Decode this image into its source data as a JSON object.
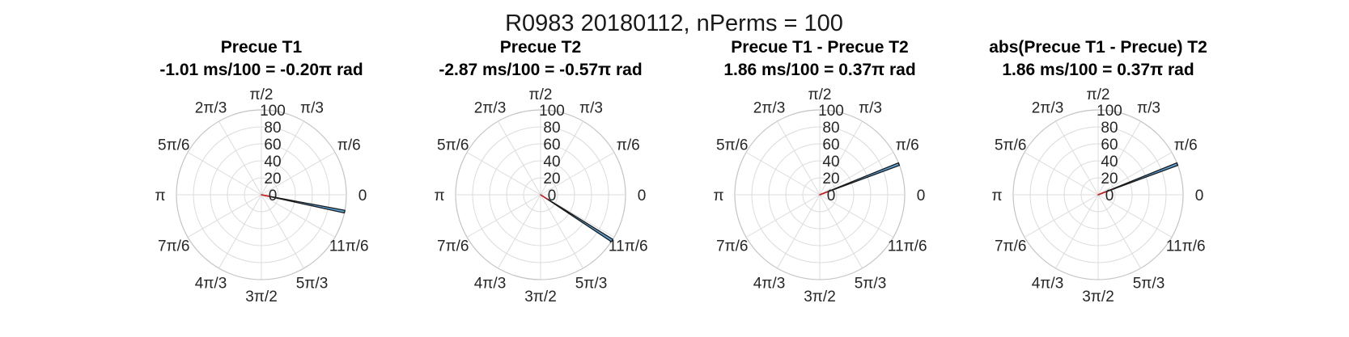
{
  "figure": {
    "title": "R0983 20180112, nPerms = 100",
    "angle_labels": [
      "0",
      "π/6",
      "π/3",
      "π/2",
      "2π/3",
      "5π/6",
      "π",
      "7π/6",
      "4π/3",
      "3π/2",
      "5π/3",
      "11π/6"
    ],
    "radial_ticks": [
      "0",
      "20",
      "40",
      "60",
      "80",
      "100"
    ]
  },
  "chart_data": [
    {
      "type": "polar-histogram",
      "title": "Precue T1",
      "subtitle": "-1.01 ms/100 = -0.20π rad",
      "rlim": [
        0,
        100
      ],
      "bins": [
        {
          "angle_start_rad": -0.216,
          "angle_end_rad": -0.184,
          "count": 100
        }
      ],
      "mean_angle_rad": -0.2,
      "mean_length": 10
    },
    {
      "type": "polar-histogram",
      "title": "Precue T2",
      "subtitle": "-2.87 ms/100 = -0.57π rad",
      "rlim": [
        0,
        100
      ],
      "bins": [
        {
          "angle_start_rad": -0.586,
          "angle_end_rad": -0.554,
          "count": 100
        }
      ],
      "mean_angle_rad": -0.57,
      "mean_length": 10
    },
    {
      "type": "polar-histogram",
      "title": "Precue T1 - Precue T2",
      "subtitle": "1.86 ms/100 = 0.37π rad",
      "rlim": [
        0,
        100
      ],
      "bins": [
        {
          "angle_start_rad": 0.354,
          "angle_end_rad": 0.386,
          "count": 100
        }
      ],
      "mean_angle_rad": 0.37,
      "mean_length": 10
    },
    {
      "type": "polar-histogram",
      "title": "abs(Precue T1 - Precue) T2",
      "subtitle": "1.86 ms/100 = 0.37π rad",
      "rlim": [
        0,
        100
      ],
      "bins": [
        {
          "angle_start_rad": 0.354,
          "angle_end_rad": 0.386,
          "count": 100
        }
      ],
      "mean_angle_rad": 0.37,
      "mean_length": 10
    }
  ]
}
